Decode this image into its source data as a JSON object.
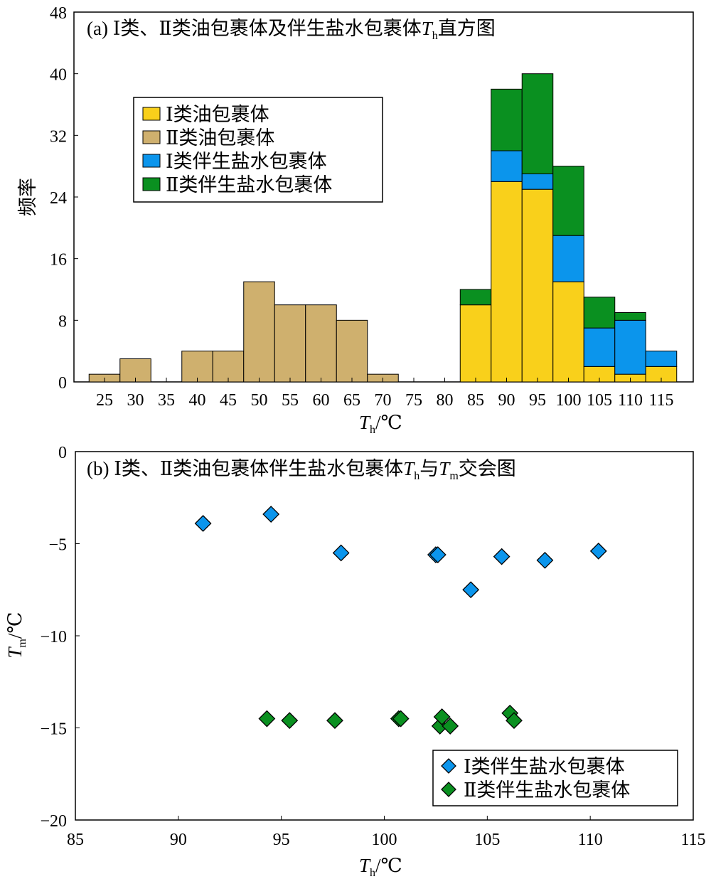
{
  "chart_data": [
    {
      "type": "bar",
      "stacked": true,
      "title": {
        "prefix": "(a) Ⅰ类、Ⅱ类油包裹体及伴生盐水包裹体",
        "var": "T",
        "sub": "h",
        "suffix": "直方图"
      },
      "xlabel": {
        "var": "T",
        "sub": "h",
        "unit": "/℃"
      },
      "ylabel": "频率",
      "ylim": [
        0,
        48
      ],
      "yticks": [
        0,
        8,
        16,
        24,
        32,
        40,
        48
      ],
      "categories": [
        25,
        30,
        35,
        40,
        45,
        50,
        55,
        60,
        65,
        70,
        75,
        80,
        85,
        90,
        95,
        100,
        105,
        110,
        115
      ],
      "series": [
        {
          "name": "Ⅰ类油包裹体",
          "color": "#F9D01B",
          "values": [
            0,
            0,
            0,
            0,
            0,
            0,
            0,
            0,
            0,
            0,
            0,
            0,
            10,
            26,
            25,
            13,
            2,
            1,
            2
          ]
        },
        {
          "name": "Ⅱ类油包裹体",
          "color": "#CFB06E",
          "values": [
            1,
            3,
            0,
            4,
            4,
            13,
            10,
            10,
            8,
            1,
            0,
            0,
            0,
            0,
            0,
            0,
            0,
            0,
            0
          ]
        },
        {
          "name": "Ⅰ类伴生盐水包裹体",
          "color": "#0B95EC",
          "values": [
            0,
            0,
            0,
            0,
            0,
            0,
            0,
            0,
            0,
            0,
            0,
            0,
            0,
            4,
            2,
            6,
            5,
            7,
            2
          ]
        },
        {
          "name": "Ⅱ类伴生盐水包裹体",
          "color": "#0A9020",
          "values": [
            0,
            0,
            0,
            0,
            0,
            0,
            0,
            0,
            0,
            0,
            0,
            0,
            2,
            8,
            13,
            9,
            4,
            1,
            0
          ]
        }
      ],
      "legend_position": "top-left"
    },
    {
      "type": "scatter",
      "title": {
        "prefix": "(b) Ⅰ类、Ⅱ类油包裹体伴生盐水包裹体",
        "var1": "T",
        "sub1": "h",
        "mid": "与",
        "var2": "T",
        "sub2": "m",
        "suffix": "交会图"
      },
      "xlabel": {
        "var": "T",
        "sub": "h",
        "unit": "/℃"
      },
      "ylabel": {
        "var": "T",
        "sub": "m",
        "unit": "/℃"
      },
      "xlim": [
        85,
        115
      ],
      "ylim": [
        -20,
        0
      ],
      "xticks": [
        85,
        90,
        95,
        100,
        105,
        110,
        115
      ],
      "yticks": [
        0,
        -5,
        -10,
        -15,
        -20
      ],
      "series": [
        {
          "name": "Ⅰ类伴生盐水包裹体",
          "color": "#0B95EC",
          "points": [
            [
              91.2,
              -3.9
            ],
            [
              94.5,
              -3.4
            ],
            [
              97.9,
              -5.5
            ],
            [
              102.5,
              -5.6
            ],
            [
              102.6,
              -5.6
            ],
            [
              104.2,
              -7.5
            ],
            [
              105.7,
              -5.7
            ],
            [
              107.8,
              -5.9
            ],
            [
              110.4,
              -5.4
            ]
          ]
        },
        {
          "name": "Ⅱ类伴生盐水包裹体",
          "color": "#0A9020",
          "points": [
            [
              94.3,
              -14.5
            ],
            [
              95.4,
              -14.6
            ],
            [
              97.6,
              -14.6
            ],
            [
              100.7,
              -14.5
            ],
            [
              100.8,
              -14.5
            ],
            [
              102.7,
              -14.9
            ],
            [
              102.8,
              -14.4
            ],
            [
              103.2,
              -14.9
            ],
            [
              106.1,
              -14.2
            ],
            [
              106.3,
              -14.6
            ]
          ]
        }
      ],
      "legend_position": "bottom-right"
    }
  ]
}
